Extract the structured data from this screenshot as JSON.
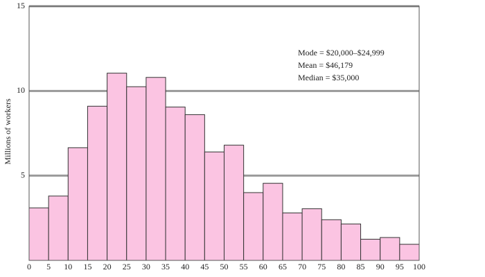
{
  "chart_data": {
    "type": "histogram",
    "y_label": "Millions of workers",
    "bins": [
      0,
      5,
      10,
      15,
      20,
      25,
      30,
      35,
      40,
      45,
      50,
      55,
      60,
      65,
      70,
      75,
      80,
      85,
      90,
      95,
      100
    ],
    "values": [
      3.1,
      3.8,
      6.65,
      9.1,
      11.05,
      10.25,
      10.8,
      9.05,
      8.6,
      6.4,
      6.8,
      4.0,
      4.55,
      2.8,
      3.05,
      2.4,
      2.15,
      1.25,
      1.35,
      0.95
    ],
    "color": "#fbc4e2",
    "xlim": [
      0,
      100
    ],
    "xticks": [
      0,
      5,
      10,
      15,
      20,
      25,
      30,
      35,
      40,
      45,
      50,
      55,
      60,
      65,
      70,
      75,
      80,
      85,
      90,
      95,
      100
    ],
    "ylim": [
      0,
      15
    ],
    "yticks": [
      5,
      10,
      15
    ],
    "grid": true,
    "annotations": [
      "Mode = $20,000–$24,999",
      "Mean = $46,179",
      "Median = $35,000"
    ]
  }
}
